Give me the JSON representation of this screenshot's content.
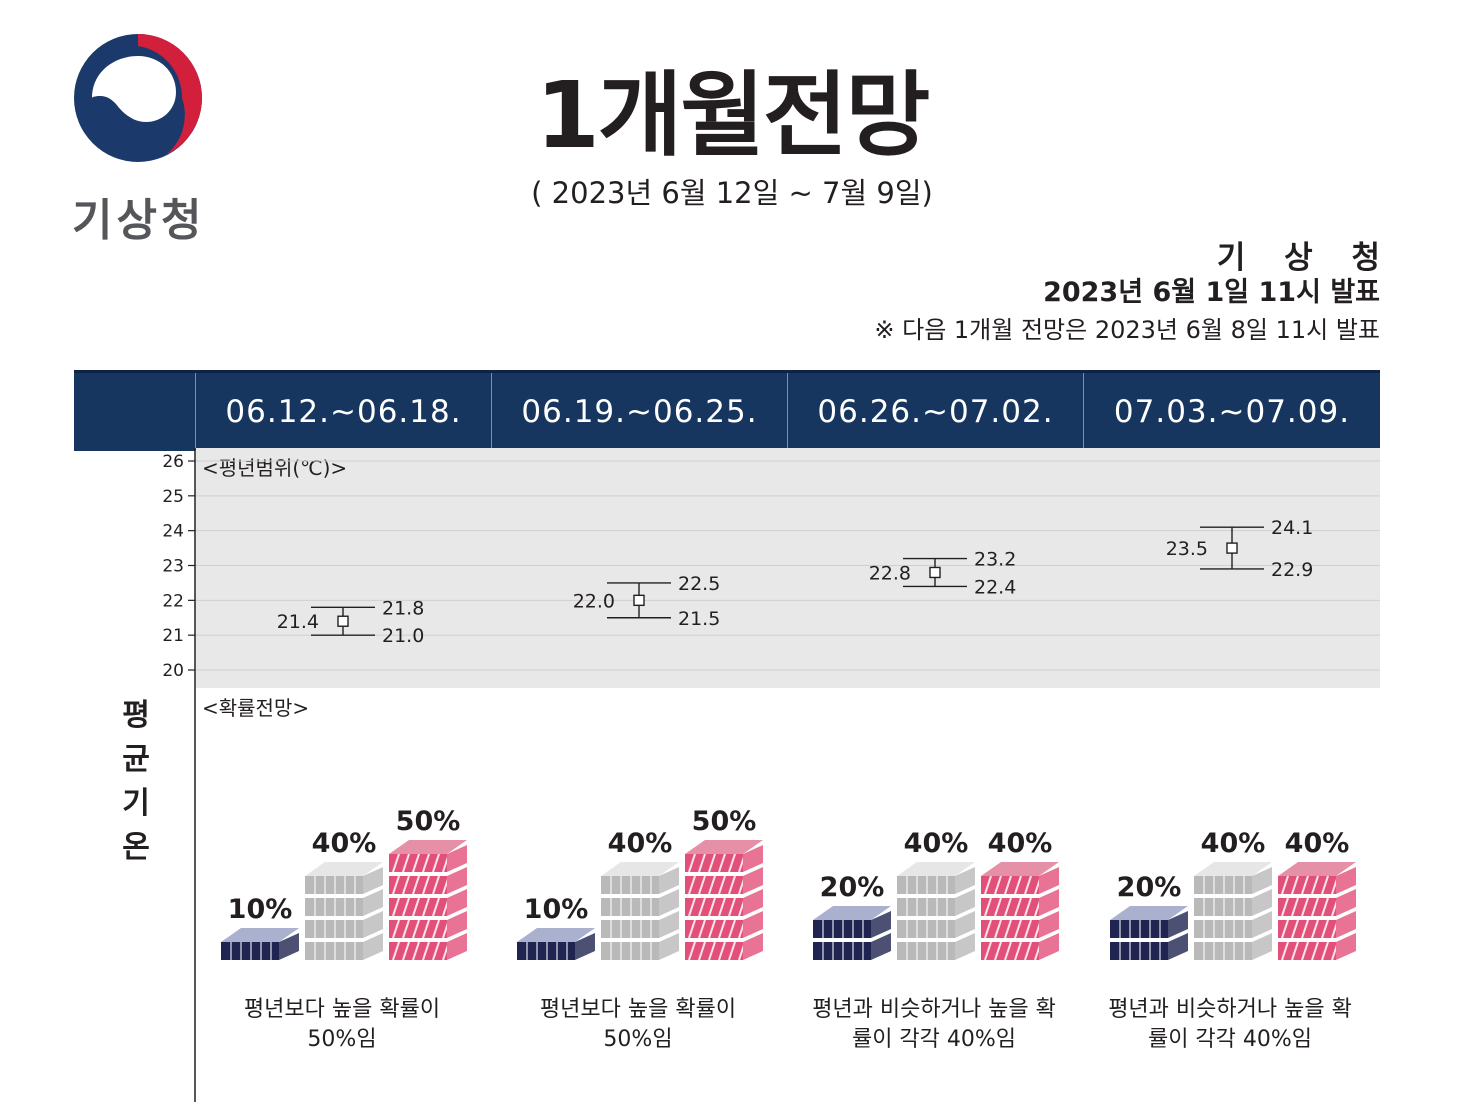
{
  "logo": {
    "name": "korea-government-emblem-icon",
    "text": "기상청"
  },
  "title": "1개월전망",
  "subtitle": "( 2023년 6월 12일 ~ 7월 9일)",
  "issuer": "기 상 청",
  "issued": "2023년 6월 1일 11시 발표",
  "next_note": "※ 다음 1개월 전망은 2023년 6월 8일 11시 발표",
  "side_label": [
    "평",
    "균",
    "기",
    "온"
  ],
  "range_tag": "<평년범위(℃)>",
  "prob_tag": "<확률전망>",
  "colors": {
    "header": "#17365f",
    "below": "#aab1cf",
    "near": "#d2d2d2",
    "above": "#e2507a",
    "panel": "#e8e8e8"
  },
  "chart_data": {
    "type": "errorbar",
    "title": "",
    "ylabel": "",
    "ylim": [
      20,
      26
    ],
    "yticks": [
      "26",
      "25",
      "24",
      "23",
      "22",
      "21",
      "20"
    ],
    "categories": [
      "06.12.~06.18.",
      "06.19.~06.25.",
      "06.26.~07.02.",
      "07.03.~07.09."
    ],
    "normal_range": [
      {
        "period": "06.12.~06.18.",
        "mean": 21.4,
        "upper": 21.8,
        "lower": 21.0,
        "mean_label": "21.4",
        "upper_label": "21.8",
        "lower_label": "21.0"
      },
      {
        "period": "06.19.~06.25.",
        "mean": 22.0,
        "upper": 22.5,
        "lower": 21.5,
        "mean_label": "22.0",
        "upper_label": "22.5",
        "lower_label": "21.5"
      },
      {
        "period": "06.26.~07.02.",
        "mean": 22.8,
        "upper": 23.2,
        "lower": 22.4,
        "mean_label": "22.8",
        "upper_label": "23.2",
        "lower_label": "22.4"
      },
      {
        "period": "07.03.~07.09.",
        "mean": 23.5,
        "upper": 24.1,
        "lower": 22.9,
        "mean_label": "23.5",
        "upper_label": "24.1",
        "lower_label": "22.9"
      }
    ],
    "probability": [
      {
        "period": "06.12.~06.18.",
        "below": 10,
        "near": 40,
        "above": 50,
        "labels": [
          "10%",
          "40%",
          "50%"
        ],
        "caption": [
          "평년보다 높을 확률이",
          "50%임"
        ]
      },
      {
        "period": "06.19.~06.25.",
        "below": 10,
        "near": 40,
        "above": 50,
        "labels": [
          "10%",
          "40%",
          "50%"
        ],
        "caption": [
          "평년보다 높을 확률이",
          "50%임"
        ]
      },
      {
        "period": "06.26.~07.02.",
        "below": 20,
        "near": 40,
        "above": 40,
        "labels": [
          "20%",
          "40%",
          "40%"
        ],
        "caption": [
          "평년과 비슷하거나 높을 확",
          "률이 각각 40%임"
        ]
      },
      {
        "period": "07.03.~07.09.",
        "below": 20,
        "near": 40,
        "above": 40,
        "labels": [
          "20%",
          "40%",
          "40%"
        ],
        "caption": [
          "평년과 비슷하거나 높을 확",
          "률이 각각 40%임"
        ]
      }
    ]
  }
}
